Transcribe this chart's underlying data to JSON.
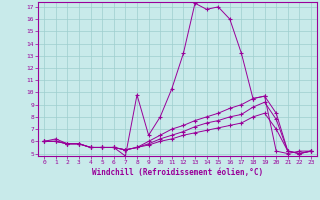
{
  "xlabel": "Windchill (Refroidissement éolien,°C)",
  "bg_color": "#c8eaea",
  "line_color": "#990099",
  "grid_color": "#9ecece",
  "xlim": [
    -0.5,
    23.5
  ],
  "ylim": [
    4.8,
    17.4
  ],
  "yticks": [
    5,
    6,
    7,
    8,
    9,
    10,
    11,
    12,
    13,
    14,
    15,
    16,
    17
  ],
  "xticks": [
    0,
    1,
    2,
    3,
    4,
    5,
    6,
    7,
    8,
    9,
    10,
    11,
    12,
    13,
    14,
    15,
    16,
    17,
    18,
    19,
    20,
    21,
    22,
    23
  ],
  "line1_x": [
    0,
    1,
    2,
    3,
    4,
    5,
    6,
    7,
    8,
    9,
    10,
    11,
    12,
    13,
    14,
    15,
    16,
    17,
    18,
    19,
    20,
    21,
    22,
    23
  ],
  "line1_y": [
    6,
    6.2,
    5.8,
    5.8,
    5.5,
    5.5,
    5.5,
    4.8,
    9.8,
    6.5,
    8.0,
    10.3,
    13.2,
    17.3,
    16.8,
    17.0,
    16.0,
    13.2,
    9.5,
    9.7,
    5.2,
    5.0,
    5.2,
    5.2
  ],
  "line2_x": [
    0,
    1,
    2,
    3,
    4,
    5,
    6,
    7,
    8,
    9,
    10,
    11,
    12,
    13,
    14,
    15,
    16,
    17,
    18,
    19,
    20,
    21,
    22,
    23
  ],
  "line2_y": [
    6,
    6,
    5.8,
    5.8,
    5.5,
    5.5,
    5.5,
    5.3,
    5.5,
    6.0,
    6.5,
    7.0,
    7.3,
    7.7,
    8.0,
    8.3,
    8.7,
    9.0,
    9.5,
    9.7,
    8.3,
    5.2,
    5.0,
    5.2
  ],
  "line3_x": [
    0,
    1,
    2,
    3,
    4,
    5,
    6,
    7,
    8,
    9,
    10,
    11,
    12,
    13,
    14,
    15,
    16,
    17,
    18,
    19,
    20,
    21,
    22,
    23
  ],
  "line3_y": [
    6,
    6,
    5.8,
    5.8,
    5.5,
    5.5,
    5.5,
    5.3,
    5.5,
    5.8,
    6.2,
    6.5,
    6.8,
    7.2,
    7.5,
    7.7,
    8.0,
    8.2,
    8.8,
    9.2,
    7.8,
    5.2,
    5.0,
    5.2
  ],
  "line4_x": [
    0,
    1,
    2,
    3,
    4,
    5,
    6,
    7,
    8,
    9,
    10,
    11,
    12,
    13,
    14,
    15,
    16,
    17,
    18,
    19,
    20,
    21,
    22,
    23
  ],
  "line4_y": [
    6,
    6,
    5.8,
    5.8,
    5.5,
    5.5,
    5.5,
    5.3,
    5.5,
    5.7,
    6.0,
    6.2,
    6.5,
    6.7,
    6.9,
    7.1,
    7.3,
    7.5,
    8.0,
    8.3,
    7.0,
    5.2,
    5.0,
    5.2
  ]
}
